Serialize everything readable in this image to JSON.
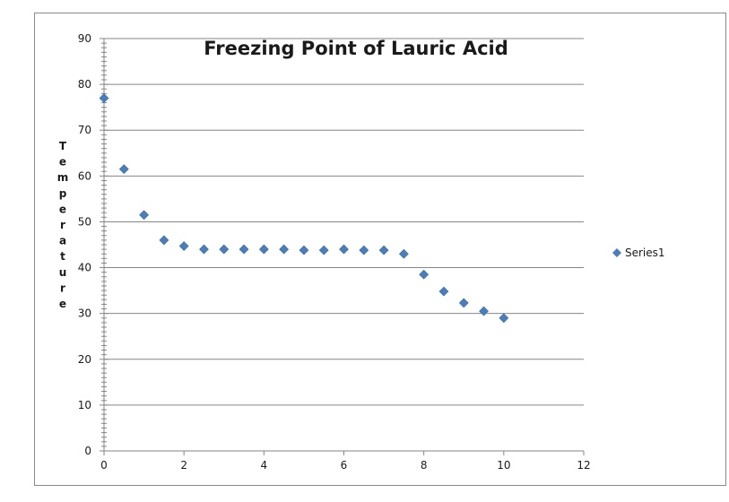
{
  "chart_data": {
    "type": "scatter",
    "title": "Freezing Point of Lauric Acid",
    "xlabel": "",
    "ylabel": "Temperature",
    "xlim": [
      0,
      12
    ],
    "ylim": [
      0,
      90
    ],
    "x_ticks": [
      0,
      2,
      4,
      6,
      8,
      10,
      12
    ],
    "y_ticks": [
      0,
      10,
      20,
      30,
      40,
      50,
      60,
      70,
      80,
      90
    ],
    "grid": "horizontal",
    "legend_position": "right",
    "marker": "diamond",
    "series": [
      {
        "name": "Series1",
        "color": "#4a7ebb",
        "points": [
          {
            "x": 0,
            "y": 77
          },
          {
            "x": 0.5,
            "y": 61.5
          },
          {
            "x": 1,
            "y": 51.5
          },
          {
            "x": 1.5,
            "y": 46
          },
          {
            "x": 2,
            "y": 44.7
          },
          {
            "x": 2.5,
            "y": 44
          },
          {
            "x": 3,
            "y": 44
          },
          {
            "x": 3.5,
            "y": 44
          },
          {
            "x": 4,
            "y": 44
          },
          {
            "x": 4.5,
            "y": 44
          },
          {
            "x": 5,
            "y": 43.8
          },
          {
            "x": 5.5,
            "y": 43.8
          },
          {
            "x": 6,
            "y": 44
          },
          {
            "x": 6.5,
            "y": 43.8
          },
          {
            "x": 7,
            "y": 43.8
          },
          {
            "x": 7.5,
            "y": 43
          },
          {
            "x": 8,
            "y": 38.5
          },
          {
            "x": 8.5,
            "y": 34.8
          },
          {
            "x": 9,
            "y": 32.3
          },
          {
            "x": 9.5,
            "y": 30.5
          },
          {
            "x": 10,
            "y": 29
          }
        ]
      }
    ]
  }
}
